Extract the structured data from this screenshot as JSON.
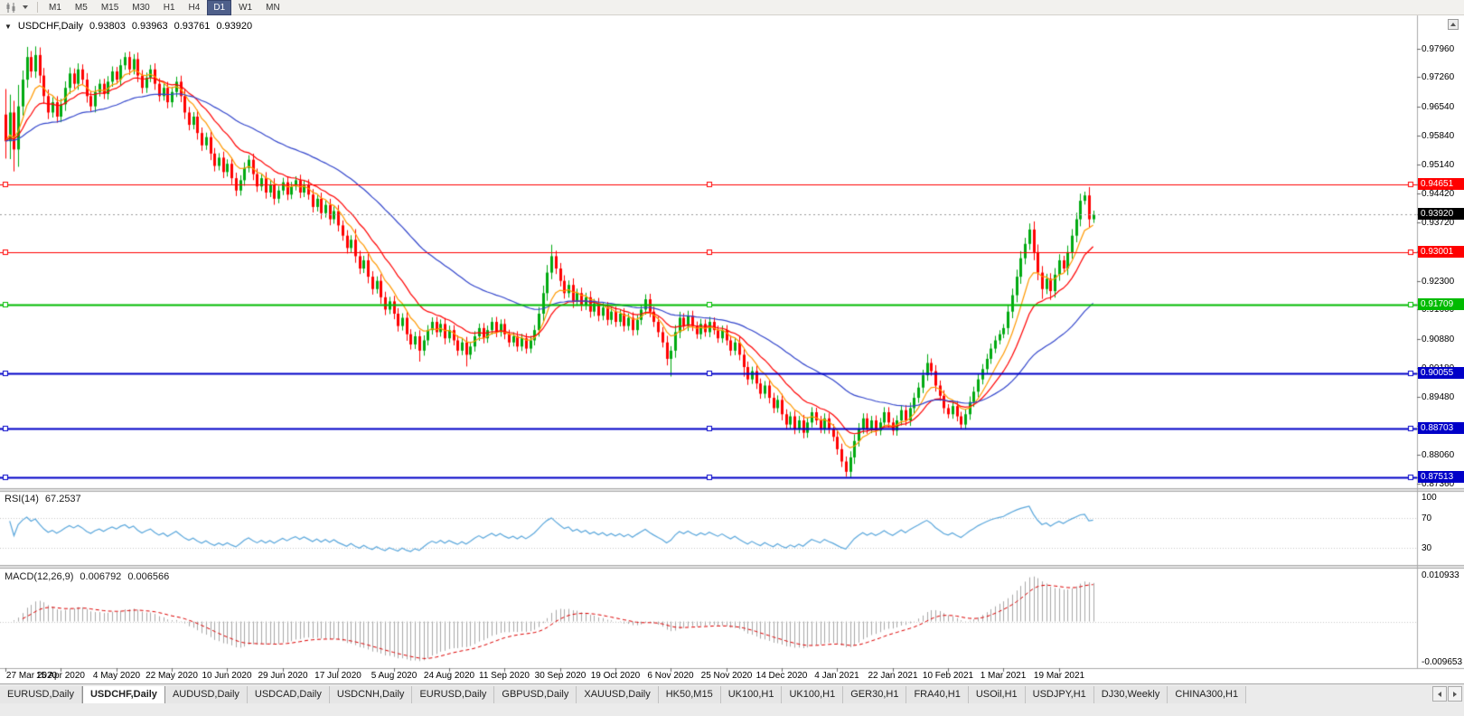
{
  "toolbar": {
    "timeframes": [
      {
        "label": "M1",
        "active": false
      },
      {
        "label": "M5",
        "active": false
      },
      {
        "label": "M15",
        "active": false
      },
      {
        "label": "M30",
        "active": false
      },
      {
        "label": "H1",
        "active": false
      },
      {
        "label": "H4",
        "active": false
      },
      {
        "label": "D1",
        "active": true
      },
      {
        "label": "W1",
        "active": false
      },
      {
        "label": "MN",
        "active": false
      }
    ],
    "icons": {
      "chart_type": "candlestick-chart-icon",
      "dropdown": "chevron-down-icon"
    }
  },
  "chart": {
    "header": {
      "expander_icon": "▼",
      "symbol": "USDCHF,Daily",
      "open": "0.93803",
      "high": "0.93963",
      "low": "0.93761",
      "close": "0.93920"
    },
    "current_price": {
      "label": "0.93920",
      "bg": "#000000"
    },
    "price_axis_labels": [
      "0.97960",
      "0.97260",
      "0.96540",
      "0.95840",
      "0.95140",
      "0.94420",
      "0.93720",
      "0.93020",
      "0.92300",
      "0.91600",
      "0.90880",
      "0.90180",
      "0.89480",
      "0.88760",
      "0.88060",
      "0.87360"
    ],
    "horizontal_lines": [
      {
        "label": "0.94651",
        "color": "#FF0000",
        "width": 1
      },
      {
        "label": "0.93001",
        "color": "#FF0000",
        "width": 1
      },
      {
        "label": "0.91709",
        "color": "#00BB00",
        "width": 2
      },
      {
        "label": "0.90055",
        "color": "#0000C8",
        "width": 2
      },
      {
        "label": "0.88703",
        "color": "#0000C8",
        "width": 2
      },
      {
        "label": "0.87513",
        "color": "#0000C8",
        "width": 2
      }
    ],
    "time_axis_labels": [
      {
        "text": "27 Mar 2020",
        "index": 0
      },
      {
        "text": "15 Apr 2020",
        "index": 13
      },
      {
        "text": "4 May 2020",
        "index": 26
      },
      {
        "text": "22 May 2020",
        "index": 39
      },
      {
        "text": "10 Jun 2020",
        "index": 52
      },
      {
        "text": "29 Jun 2020",
        "index": 65
      },
      {
        "text": "17 Jul 2020",
        "index": 78
      },
      {
        "text": "5 Aug 2020",
        "index": 91
      },
      {
        "text": "24 Aug 2020",
        "index": 104
      },
      {
        "text": "11 Sep 2020",
        "index": 117
      },
      {
        "text": "30 Sep 2020",
        "index": 130
      },
      {
        "text": "19 Oct 2020",
        "index": 143
      },
      {
        "text": "6 Nov 2020",
        "index": 156
      },
      {
        "text": "25 Nov 2020",
        "index": 169
      },
      {
        "text": "14 Dec 2020",
        "index": 182
      },
      {
        "text": "4 Jan 2021",
        "index": 195
      },
      {
        "text": "22 Jan 2021",
        "index": 208
      },
      {
        "text": "10 Feb 2021",
        "index": 221
      },
      {
        "text": "1 Mar 2021",
        "index": 234
      },
      {
        "text": "19 Mar 2021",
        "index": 247
      }
    ]
  },
  "chart_data": {
    "type": "candlestick",
    "title": "USDCHF,Daily",
    "x_range": {
      "start": "27 Mar 2020",
      "end": "1 Apr 2021"
    },
    "ylim": [
      0.8725,
      0.987
    ],
    "up_color": "#00AA11",
    "down_color": "#FF0000",
    "open_first": 0.9635,
    "closes": [
      0.957,
      0.964,
      0.955,
      0.9655,
      0.972,
      0.9775,
      0.974,
      0.978,
      0.973,
      0.968,
      0.964,
      0.9665,
      0.963,
      0.966,
      0.97,
      0.9735,
      0.971,
      0.9745,
      0.972,
      0.968,
      0.9655,
      0.969,
      0.971,
      0.9685,
      0.9715,
      0.974,
      0.972,
      0.9755,
      0.9775,
      0.9745,
      0.977,
      0.973,
      0.97,
      0.9725,
      0.9745,
      0.971,
      0.968,
      0.97,
      0.9665,
      0.969,
      0.9715,
      0.968,
      0.964,
      0.961,
      0.963,
      0.959,
      0.956,
      0.958,
      0.954,
      0.951,
      0.953,
      0.9495,
      0.9515,
      0.948,
      0.945,
      0.9475,
      0.9505,
      0.9525,
      0.949,
      0.946,
      0.948,
      0.9445,
      0.9465,
      0.943,
      0.945,
      0.947,
      0.944,
      0.946,
      0.9475,
      0.9445,
      0.9465,
      0.944,
      0.941,
      0.943,
      0.9395,
      0.9415,
      0.938,
      0.94,
      0.9365,
      0.934,
      0.931,
      0.933,
      0.929,
      0.926,
      0.928,
      0.924,
      0.921,
      0.923,
      0.919,
      0.916,
      0.918,
      0.915,
      0.912,
      0.914,
      0.91,
      0.9075,
      0.9095,
      0.906,
      0.9085,
      0.911,
      0.913,
      0.9105,
      0.9125,
      0.909,
      0.911,
      0.9085,
      0.906,
      0.908,
      0.905,
      0.907,
      0.9095,
      0.9115,
      0.909,
      0.911,
      0.913,
      0.9105,
      0.9125,
      0.91,
      0.908,
      0.9095,
      0.907,
      0.909,
      0.9065,
      0.9085,
      0.911,
      0.915,
      0.92,
      0.925,
      0.929,
      0.926,
      0.923,
      0.92,
      0.922,
      0.918,
      0.92,
      0.917,
      0.919,
      0.9155,
      0.9175,
      0.9145,
      0.9165,
      0.9135,
      0.9155,
      0.913,
      0.915,
      0.912,
      0.914,
      0.911,
      0.9135,
      0.916,
      0.9185,
      0.9155,
      0.913,
      0.9105,
      0.908,
      0.904,
      0.906,
      0.9105,
      0.914,
      0.912,
      0.9145,
      0.912,
      0.91,
      0.9125,
      0.9105,
      0.913,
      0.911,
      0.909,
      0.911,
      0.9085,
      0.906,
      0.908,
      0.905,
      0.902,
      0.899,
      0.901,
      0.898,
      0.8955,
      0.8975,
      0.8945,
      0.892,
      0.894,
      0.8905,
      0.888,
      0.89,
      0.887,
      0.889,
      0.886,
      0.8885,
      0.891,
      0.889,
      0.887,
      0.8895,
      0.887,
      0.885,
      0.882,
      0.879,
      0.8765,
      0.88,
      0.884,
      0.887,
      0.8895,
      0.887,
      0.889,
      0.8865,
      0.8885,
      0.891,
      0.8885,
      0.8865,
      0.889,
      0.8915,
      0.889,
      0.892,
      0.8945,
      0.897,
      0.9,
      0.903,
      0.901,
      0.8975,
      0.895,
      0.892,
      0.8905,
      0.8925,
      0.89,
      0.888,
      0.8905,
      0.8935,
      0.896,
      0.899,
      0.9015,
      0.904,
      0.9065,
      0.9085,
      0.91,
      0.9115,
      0.9155,
      0.9195,
      0.924,
      0.9285,
      0.932,
      0.9355,
      0.93,
      0.925,
      0.921,
      0.9235,
      0.9205,
      0.9245,
      0.928,
      0.926,
      0.93,
      0.934,
      0.938,
      0.9425,
      0.9438,
      0.938,
      0.9392
    ],
    "special_wicks": {
      "0": [
        0.004,
        0.002
      ],
      "1": [
        0.002,
        0.002
      ],
      "2": [
        0,
        0.0025
      ],
      "3": [
        0.002,
        0.001
      ],
      "5": [
        0.0005,
        0
      ],
      "7": [
        0.0005,
        0
      ],
      "82": [
        0.001,
        0
      ],
      "97": [
        0,
        0.0012
      ],
      "108": [
        0,
        0.0015
      ],
      "128": [
        0.0012,
        0
      ],
      "156": [
        0,
        0.0032
      ],
      "173": [
        0,
        0.001
      ],
      "216": [
        0.0008,
        0
      ],
      "243": [
        0,
        0.0008
      ],
      "245": [
        0,
        0.0008
      ]
    },
    "moving_averages": [
      {
        "name": "fast-ma",
        "period": 8,
        "color": "#FF9900"
      },
      {
        "name": "medium-ma",
        "period": 16,
        "color": "#FF0000"
      },
      {
        "name": "slow-ma",
        "period": 45,
        "color": "#3346CC"
      }
    ],
    "rsi": {
      "title": "RSI(14)",
      "value": "67.2537",
      "period": 14,
      "color": "#5AA7DC",
      "levels": [
        70,
        30
      ],
      "axis_labels": [
        "100",
        "70",
        "30"
      ],
      "ylim": [
        10,
        100
      ]
    },
    "macd": {
      "title": "MACD(12,26,9)",
      "value_main": "0.006792",
      "value_signal": "0.006566",
      "fast": 12,
      "slow": 26,
      "signal": 9,
      "histogram_color": "#A8A8A8",
      "signal_color": "#DD0000",
      "axis_labels": [
        "0.010933",
        "-0.009653"
      ],
      "ylim": [
        -0.0097,
        0.0109
      ]
    }
  },
  "tabs": {
    "items": [
      {
        "label": "EURUSD,Daily",
        "active": false
      },
      {
        "label": "USDCHF,Daily",
        "active": true
      },
      {
        "label": "AUDUSD,Daily",
        "active": false
      },
      {
        "label": "USDCAD,Daily",
        "active": false
      },
      {
        "label": "USDCNH,Daily",
        "active": false
      },
      {
        "label": "EURUSD,Daily",
        "active": false
      },
      {
        "label": "GBPUSD,Daily",
        "active": false
      },
      {
        "label": "XAUUSD,Daily",
        "active": false
      },
      {
        "label": "HK50,M15",
        "active": false
      },
      {
        "label": "UK100,H1",
        "active": false
      },
      {
        "label": "UK100,H1",
        "active": false
      },
      {
        "label": "GER30,H1",
        "active": false
      },
      {
        "label": "FRA40,H1",
        "active": false
      },
      {
        "label": "USOil,H1",
        "active": false
      },
      {
        "label": "USDJPY,H1",
        "active": false
      },
      {
        "label": "DJ30,Weekly",
        "active": false
      },
      {
        "label": "CHINA300,H1",
        "active": false
      }
    ],
    "icons": {
      "scroll_left": "arrow-left-icon",
      "scroll_right": "arrow-right-icon"
    }
  }
}
